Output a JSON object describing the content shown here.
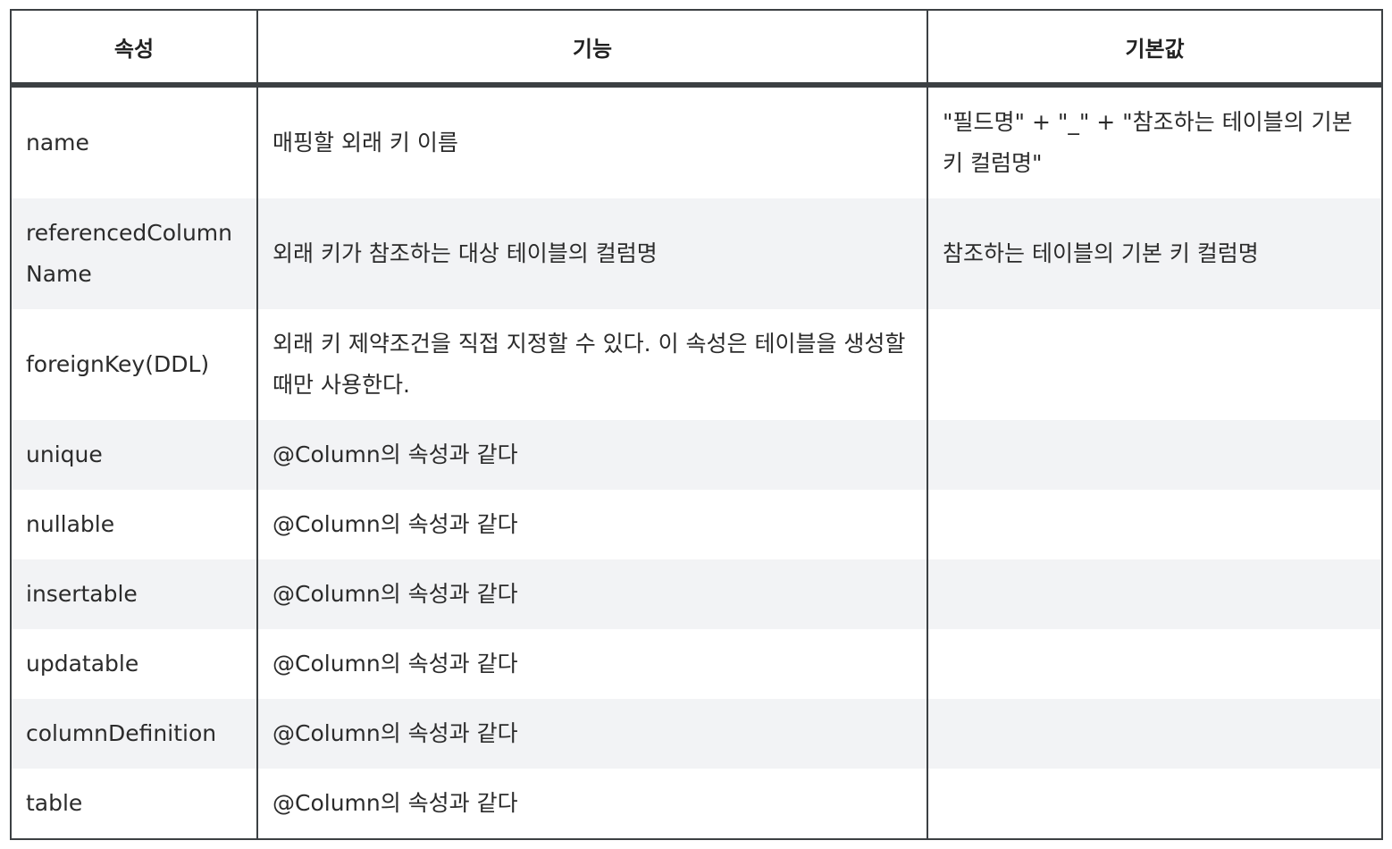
{
  "table": {
    "headers": [
      "속성",
      "기능",
      "기본값"
    ],
    "rows": [
      {
        "attr": "name",
        "func": "매핑할 외래 키 이름",
        "def": "\"필드명\" + \"_\" + \"참조하는 테이블의 기본 키 컬럼명\""
      },
      {
        "attr": "referencedColumnName",
        "func": "외래 키가 참조하는 대상 테이블의 컬럼명",
        "def": "참조하는 테이블의 기본 키 컬럼명"
      },
      {
        "attr": "foreignKey(DDL)",
        "func": "외래 키 제약조건을 직접 지정할 수 있다. 이 속성은 테이블을 생성할 때만 사용한다.",
        "def": ""
      },
      {
        "attr": "unique",
        "func": "@Column의 속성과 같다",
        "def": ""
      },
      {
        "attr": "nullable",
        "func": "@Column의 속성과 같다",
        "def": ""
      },
      {
        "attr": "insertable",
        "func": "@Column의 속성과 같다",
        "def": ""
      },
      {
        "attr": "updatable",
        "func": "@Column의 속성과 같다",
        "def": ""
      },
      {
        "attr": "columnDefinition",
        "func": "@Column의 속성과 같다",
        "def": ""
      },
      {
        "attr": "table",
        "func": "@Column의 속성과 같다",
        "def": ""
      }
    ]
  }
}
